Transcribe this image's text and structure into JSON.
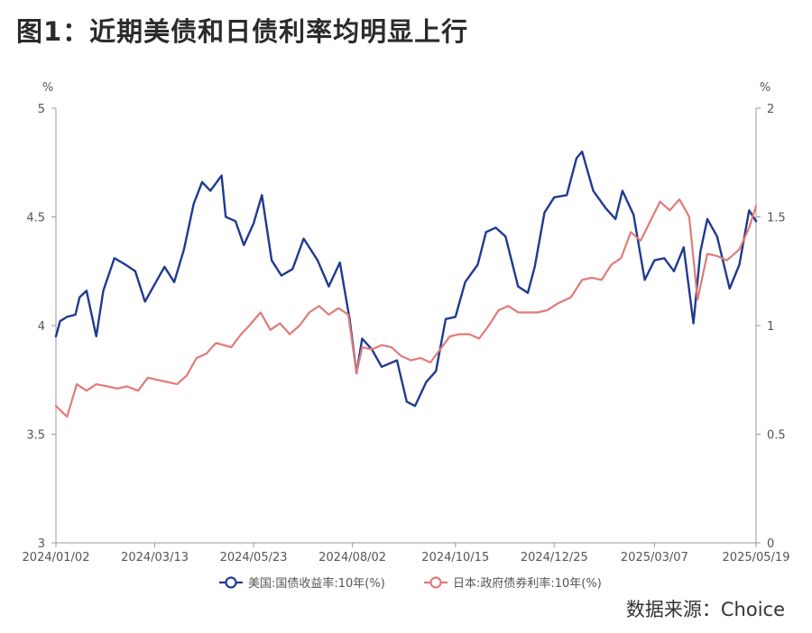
{
  "title": "图1：近期美债和日债利率均明显上行",
  "source": "数据来源：Choice",
  "colors": {
    "us": "#1f3b8f",
    "jp": "#e07b78",
    "axis": "#999999",
    "text": "#555555"
  },
  "chart_data": {
    "type": "line",
    "x_tick_labels": [
      "2024/01/02",
      "2024/03/13",
      "2024/05/23",
      "2024/08/02",
      "2024/10/15",
      "2024/12/25",
      "2025/03/07",
      "2025/05/19"
    ],
    "x_range": [
      "2024/01/02",
      "2025/05/19"
    ],
    "y_left": {
      "unit": "%",
      "range": [
        3,
        5
      ],
      "ticks": [
        "3",
        "3.5",
        "4",
        "4.5",
        "5"
      ]
    },
    "y_right": {
      "unit": "%",
      "range": [
        0,
        2
      ],
      "ticks": [
        "0",
        "0.5",
        "1",
        "1.5",
        "2"
      ]
    },
    "legend": [
      {
        "name": "美国:国债收益率:10年(%)",
        "color": "#1f3b8f",
        "axis": "left"
      },
      {
        "name": "日本:政府债券利率:10年(%)",
        "color": "#e07b78",
        "axis": "right"
      }
    ],
    "series": [
      {
        "name": "美国:国债收益率:10年(%)",
        "axis": "left",
        "x": [
          "2024/01/02",
          "2024/01/05",
          "2024/01/10",
          "2024/01/16",
          "2024/01/19",
          "2024/01/24",
          "2024/01/31",
          "2024/02/05",
          "2024/02/13",
          "2024/02/21",
          "2024/02/28",
          "2024/03/06",
          "2024/03/13",
          "2024/03/20",
          "2024/03/27",
          "2024/04/03",
          "2024/04/10",
          "2024/04/16",
          "2024/04/22",
          "2024/04/30",
          "2024/05/03",
          "2024/05/10",
          "2024/05/16",
          "2024/05/23",
          "2024/05/29",
          "2024/06/05",
          "2024/06/12",
          "2024/06/20",
          "2024/06/28",
          "2024/07/08",
          "2024/07/16",
          "2024/07/24",
          "2024/07/31",
          "2024/08/05",
          "2024/08/09",
          "2024/08/16",
          "2024/08/23",
          "2024/09/03",
          "2024/09/10",
          "2024/09/16",
          "2024/09/24",
          "2024/10/01",
          "2024/10/08",
          "2024/10/15",
          "2024/10/22",
          "2024/10/31",
          "2024/11/06",
          "2024/11/13",
          "2024/11/20",
          "2024/11/29",
          "2024/12/06",
          "2024/12/11",
          "2024/12/18",
          "2024/12/25",
          "2025/01/03",
          "2025/01/10",
          "2025/01/14",
          "2025/01/22",
          "2025/01/31",
          "2025/02/07",
          "2025/02/12",
          "2025/02/20",
          "2025/02/28",
          "2025/03/07",
          "2025/03/14",
          "2025/03/21",
          "2025/03/28",
          "2025/04/04",
          "2025/04/09",
          "2025/04/14",
          "2025/04/21",
          "2025/04/30",
          "2025/05/07",
          "2025/05/14",
          "2025/05/19"
        ],
        "values": [
          3.95,
          4.02,
          4.04,
          4.05,
          4.13,
          4.16,
          3.95,
          4.16,
          4.31,
          4.28,
          4.25,
          4.11,
          4.19,
          4.27,
          4.2,
          4.35,
          4.56,
          4.66,
          4.62,
          4.69,
          4.5,
          4.48,
          4.37,
          4.47,
          4.6,
          4.3,
          4.23,
          4.26,
          4.4,
          4.3,
          4.18,
          4.29,
          4.03,
          3.78,
          3.94,
          3.89,
          3.81,
          3.84,
          3.65,
          3.63,
          3.74,
          3.79,
          4.03,
          4.04,
          4.2,
          4.28,
          4.43,
          4.45,
          4.41,
          4.18,
          4.15,
          4.27,
          4.52,
          4.59,
          4.6,
          4.77,
          4.8,
          4.62,
          4.54,
          4.49,
          4.62,
          4.51,
          4.21,
          4.3,
          4.31,
          4.25,
          4.36,
          4.01,
          4.34,
          4.49,
          4.41,
          4.17,
          4.28,
          4.53,
          4.48
        ]
      },
      {
        "name": "日本:政府债券利率:10年(%)",
        "axis": "right",
        "x": [
          "2024/01/02",
          "2024/01/10",
          "2024/01/17",
          "2024/01/24",
          "2024/01/31",
          "2024/02/08",
          "2024/02/15",
          "2024/02/22",
          "2024/03/01",
          "2024/03/08",
          "2024/03/15",
          "2024/03/22",
          "2024/03/29",
          "2024/04/05",
          "2024/04/12",
          "2024/04/19",
          "2024/04/26",
          "2024/05/07",
          "2024/05/14",
          "2024/05/20",
          "2024/05/28",
          "2024/06/04",
          "2024/06/11",
          "2024/06/18",
          "2024/06/25",
          "2024/07/02",
          "2024/07/09",
          "2024/07/16",
          "2024/07/23",
          "2024/07/30",
          "2024/08/05",
          "2024/08/09",
          "2024/08/16",
          "2024/08/23",
          "2024/08/30",
          "2024/09/06",
          "2024/09/13",
          "2024/09/20",
          "2024/09/27",
          "2024/10/04",
          "2024/10/11",
          "2024/10/18",
          "2024/10/25",
          "2024/11/01",
          "2024/11/08",
          "2024/11/15",
          "2024/11/22",
          "2024/11/29",
          "2024/12/06",
          "2024/12/13",
          "2024/12/20",
          "2024/12/27",
          "2025/01/06",
          "2025/01/14",
          "2025/01/21",
          "2025/01/28",
          "2025/02/04",
          "2025/02/11",
          "2025/02/18",
          "2025/02/25",
          "2025/03/04",
          "2025/03/11",
          "2025/03/18",
          "2025/03/25",
          "2025/04/01",
          "2025/04/07",
          "2025/04/14",
          "2025/04/21",
          "2025/04/28",
          "2025/05/07",
          "2025/05/14",
          "2025/05/19"
        ],
        "values": [
          0.63,
          0.58,
          0.73,
          0.7,
          0.73,
          0.72,
          0.71,
          0.72,
          0.7,
          0.76,
          0.75,
          0.74,
          0.73,
          0.77,
          0.85,
          0.87,
          0.92,
          0.9,
          0.96,
          1.0,
          1.06,
          0.98,
          1.01,
          0.96,
          1.0,
          1.06,
          1.09,
          1.05,
          1.08,
          1.05,
          0.78,
          0.9,
          0.89,
          0.91,
          0.9,
          0.86,
          0.84,
          0.85,
          0.83,
          0.89,
          0.95,
          0.96,
          0.96,
          0.94,
          1.0,
          1.07,
          1.09,
          1.06,
          1.06,
          1.06,
          1.07,
          1.1,
          1.13,
          1.21,
          1.22,
          1.21,
          1.28,
          1.31,
          1.43,
          1.39,
          1.48,
          1.57,
          1.53,
          1.58,
          1.5,
          1.12,
          1.33,
          1.32,
          1.3,
          1.35,
          1.45,
          1.55
        ]
      }
    ]
  }
}
